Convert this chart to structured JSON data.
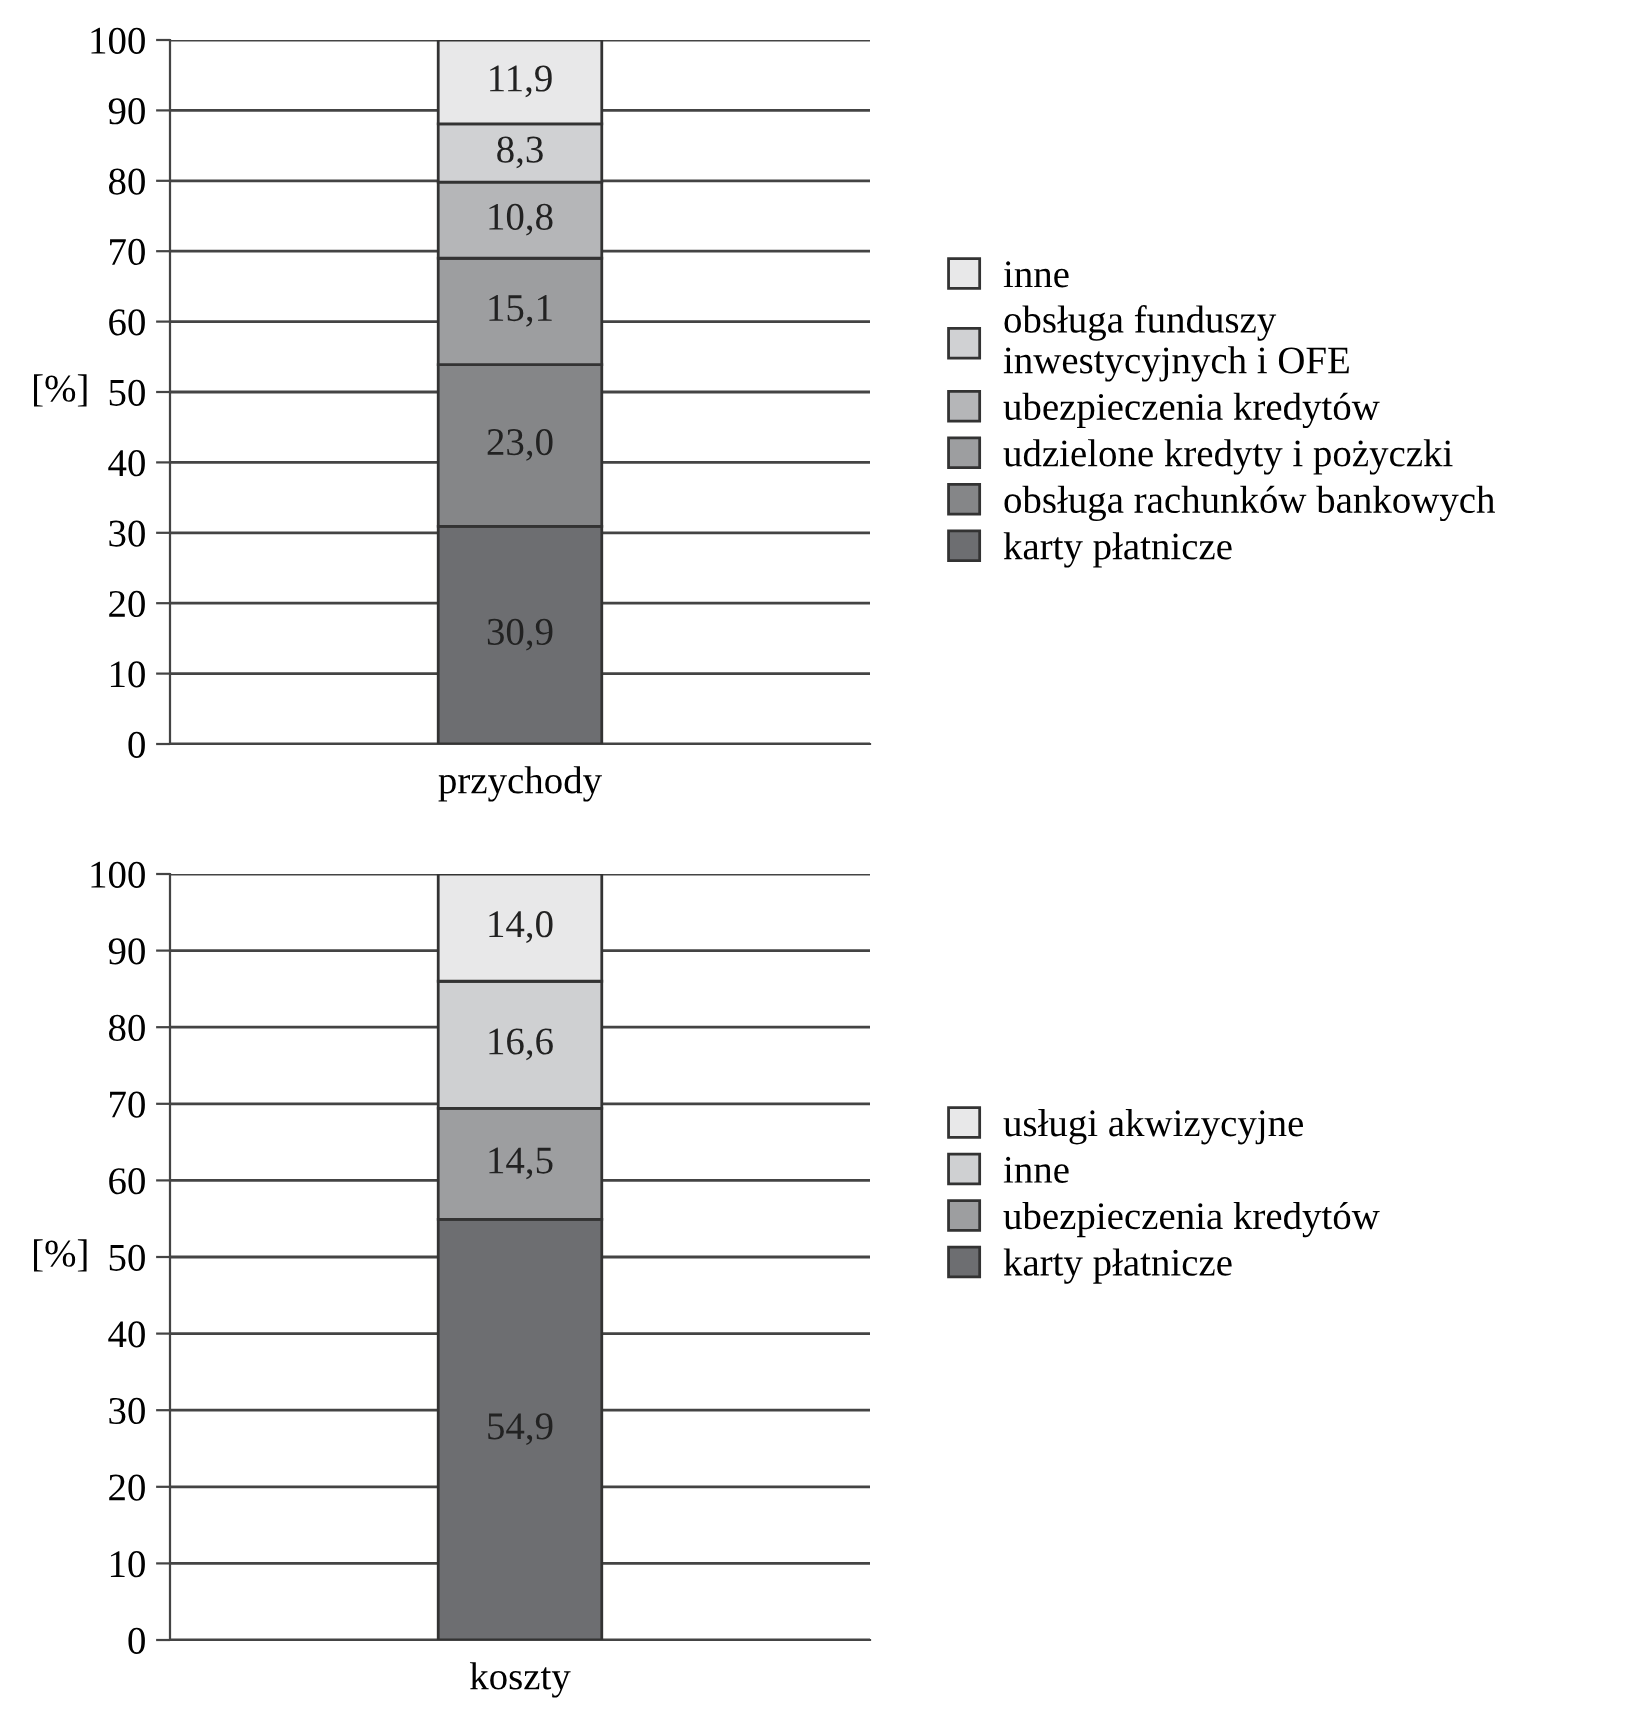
{
  "chart_data": [
    {
      "type": "bar",
      "stacked": true,
      "categories": [
        "przychody"
      ],
      "ylabel": "[%]",
      "ylim": [
        0,
        100
      ],
      "yticks": [
        0,
        10,
        20,
        30,
        40,
        50,
        60,
        70,
        80,
        90,
        100
      ],
      "grid": "y",
      "legend": "right",
      "series": [
        {
          "name": "karty płatnicze",
          "color": "#6d6e71",
          "values": [
            30.9
          ],
          "value_labels": [
            "30,9"
          ]
        },
        {
          "name": "obsługa rachunków bankowych",
          "color": "#858688",
          "values": [
            23.0
          ],
          "value_labels": [
            "23,0"
          ]
        },
        {
          "name": "udzielone kredyty i pożyczki",
          "color": "#9d9ea0",
          "values": [
            15.1
          ],
          "value_labels": [
            "15,1"
          ]
        },
        {
          "name": "ubezpieczenia kredytów",
          "color": "#b5b6b8",
          "values": [
            10.8
          ],
          "value_labels": [
            "10,8"
          ]
        },
        {
          "name": "obsługa funduszy\ninwestycyjnych i OFE",
          "color": "#d0d1d3",
          "values": [
            8.3
          ],
          "value_labels": [
            "8,3"
          ]
        },
        {
          "name": "inne",
          "color": "#e8e8e9",
          "values": [
            11.9
          ],
          "value_labels": [
            "11,9"
          ]
        }
      ]
    },
    {
      "type": "bar",
      "stacked": true,
      "categories": [
        "koszty"
      ],
      "ylabel": "[%]",
      "ylim": [
        0,
        100
      ],
      "yticks": [
        0,
        10,
        20,
        30,
        40,
        50,
        60,
        70,
        80,
        90,
        100
      ],
      "grid": "y",
      "legend": "right",
      "series": [
        {
          "name": "karty płatnicze",
          "color": "#6d6e71",
          "values": [
            54.9
          ],
          "value_labels": [
            "54,9"
          ]
        },
        {
          "name": "ubezpieczenia kredytów",
          "color": "#9d9ea0",
          "values": [
            14.5
          ],
          "value_labels": [
            "14,5"
          ]
        },
        {
          "name": "inne",
          "color": "#cfd0d2",
          "values": [
            16.6
          ],
          "value_labels": [
            "16,6"
          ]
        },
        {
          "name": "usługi akwizycyjne",
          "color": "#e8e8e9",
          "values": [
            14.0
          ],
          "value_labels": [
            "14,0"
          ]
        }
      ]
    }
  ]
}
